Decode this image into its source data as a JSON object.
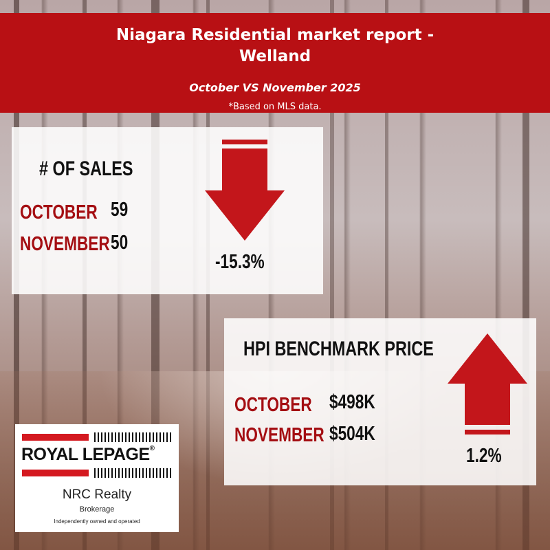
{
  "header": {
    "title_line1": "Niagara Residential market report -",
    "title_line2": "Welland",
    "subtitle": "October VS November 2025",
    "note": "*Based on MLS data."
  },
  "sales": {
    "heading": "# OF SALES",
    "rows": [
      {
        "month": "OCTOBER",
        "value": "59"
      },
      {
        "month": "NOVEMBER",
        "value": "50"
      }
    ],
    "change": "-15.3%",
    "direction": "down"
  },
  "hpi": {
    "heading": "HPI BENCHMARK PRICE",
    "rows": [
      {
        "month": "OCTOBER",
        "value": "$498K"
      },
      {
        "month": "NOVEMBER",
        "value": "$504K"
      }
    ],
    "change": "1.2%",
    "direction": "up"
  },
  "logo": {
    "brand": "ROYAL LEPAGE",
    "brand_mark": "®",
    "office": "NRC Realty",
    "type": "Brokerage",
    "tagline": "Independently owned and operated"
  },
  "colors": {
    "accent": "#b81014",
    "month_text": "#a40e12",
    "arrow": "#c3161b"
  },
  "icons": {
    "sales_arrow": "arrow-down-icon",
    "hpi_arrow": "arrow-up-icon"
  }
}
